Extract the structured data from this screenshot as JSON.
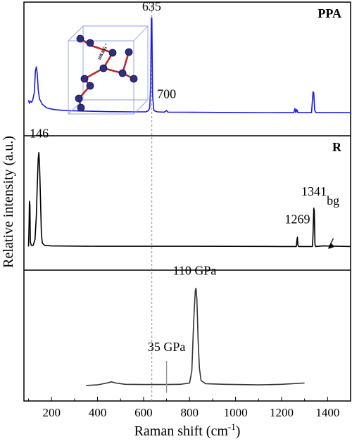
{
  "chart_data": {
    "type": "line",
    "x_axis": {
      "label": "Raman shift (cm",
      "label_sup": "-1",
      "label_close": ")",
      "range": [
        80,
        1500
      ],
      "ticks": [
        200,
        400,
        600,
        800,
        1000,
        1200,
        1400
      ],
      "tick_labels": [
        "200",
        "400",
        "600",
        "800",
        "1000",
        "1200",
        "1400"
      ]
    },
    "y_axis": {
      "label": "Relative intensity (a.u.)"
    },
    "reference_line_x": 636,
    "panels": [
      {
        "label": "PPA",
        "label_color": "#1010e0",
        "series_color": "#1a1aee",
        "x_range": [
          100,
          1500
        ],
        "baseline": 0.08,
        "points": [
          [
            100,
            0.2
          ],
          [
            104,
            0.17
          ],
          [
            108,
            0.19
          ],
          [
            113,
            0.18
          ],
          [
            118,
            0.2
          ],
          [
            125,
            0.27
          ],
          [
            130,
            0.48
          ],
          [
            134,
            0.52
          ],
          [
            138,
            0.45
          ],
          [
            142,
            0.3
          ],
          [
            148,
            0.21
          ],
          [
            160,
            0.16
          ],
          [
            180,
            0.125
          ],
          [
            210,
            0.11
          ],
          [
            260,
            0.1
          ],
          [
            350,
            0.095
          ],
          [
            450,
            0.09
          ],
          [
            550,
            0.088
          ],
          [
            610,
            0.088
          ],
          [
            622,
            0.1
          ],
          [
            627,
            0.13
          ],
          [
            631,
            0.35
          ],
          [
            634,
            0.99
          ],
          [
            636,
            0.99
          ],
          [
            639,
            0.25
          ],
          [
            645,
            0.1
          ],
          [
            660,
            0.088
          ],
          [
            690,
            0.085
          ],
          [
            700,
            0.1
          ],
          [
            706,
            0.085
          ],
          [
            800,
            0.084
          ],
          [
            1000,
            0.082
          ],
          [
            1200,
            0.08
          ],
          [
            1253,
            0.08
          ],
          [
            1258,
            0.12
          ],
          [
            1262,
            0.08
          ],
          [
            1266,
            0.11
          ],
          [
            1271,
            0.08
          ],
          [
            1330,
            0.08
          ],
          [
            1334,
            0.2
          ],
          [
            1337,
            0.28
          ],
          [
            1340,
            0.27
          ],
          [
            1344,
            0.1
          ],
          [
            1350,
            0.08
          ],
          [
            1500,
            0.08
          ]
        ],
        "peak_labels": [
          {
            "text": "635",
            "x": 635,
            "y": 1.06
          },
          {
            "text": "700",
            "x": 700,
            "y": 0.22
          }
        ]
      },
      {
        "label": "R",
        "label_color": "#000000",
        "series_color": "#000000",
        "x_range": [
          100,
          1500
        ],
        "baseline": 0.04,
        "points": [
          [
            100,
            0.04
          ],
          [
            102,
            0.2
          ],
          [
            104,
            0.43
          ],
          [
            106,
            0.4
          ],
          [
            108,
            0.08
          ],
          [
            112,
            0.05
          ],
          [
            120,
            0.05
          ],
          [
            128,
            0.1
          ],
          [
            134,
            0.3
          ],
          [
            138,
            0.58
          ],
          [
            142,
            0.8
          ],
          [
            145,
            0.85
          ],
          [
            148,
            0.74
          ],
          [
            152,
            0.45
          ],
          [
            156,
            0.15
          ],
          [
            160,
            0.07
          ],
          [
            170,
            0.05
          ],
          [
            200,
            0.045
          ],
          [
            400,
            0.042
          ],
          [
            800,
            0.042
          ],
          [
            1200,
            0.04
          ],
          [
            1264,
            0.04
          ],
          [
            1267,
            0.1
          ],
          [
            1269,
            0.12
          ],
          [
            1271,
            0.05
          ],
          [
            1274,
            0.04
          ],
          [
            1334,
            0.04
          ],
          [
            1337,
            0.15
          ],
          [
            1340,
            0.37
          ],
          [
            1342,
            0.35
          ],
          [
            1345,
            0.06
          ],
          [
            1348,
            0.04
          ],
          [
            1380,
            0.045
          ],
          [
            1500,
            0.04
          ]
        ],
        "peak_labels": [
          {
            "text": "146",
            "x": 146,
            "y": 0.98
          },
          {
            "text": "1269",
            "x": 1269,
            "y": 0.24
          },
          {
            "text": "1341",
            "x": 1341,
            "y": 0.48
          },
          {
            "text": "bg",
            "x": 1424,
            "y": 0.4
          }
        ]
      },
      {
        "label": "",
        "series_color": "#333333",
        "x_range": [
          350,
          1300
        ],
        "baseline": 0.08,
        "points": [
          [
            350,
            0.08
          ],
          [
            400,
            0.085
          ],
          [
            440,
            0.1
          ],
          [
            460,
            0.11
          ],
          [
            480,
            0.1
          ],
          [
            520,
            0.09
          ],
          [
            600,
            0.088
          ],
          [
            700,
            0.088
          ],
          [
            760,
            0.09
          ],
          [
            800,
            0.1
          ],
          [
            810,
            0.2
          ],
          [
            818,
            0.6
          ],
          [
            825,
            0.85
          ],
          [
            828,
            0.87
          ],
          [
            832,
            0.78
          ],
          [
            837,
            0.45
          ],
          [
            843,
            0.22
          ],
          [
            850,
            0.12
          ],
          [
            870,
            0.095
          ],
          [
            950,
            0.09
          ],
          [
            1100,
            0.085
          ],
          [
            1200,
            0.09
          ],
          [
            1300,
            0.1
          ]
        ],
        "peak_labels": [
          {
            "text": "110 GPa",
            "x": 822,
            "y": 0.98
          },
          {
            "text": "35 GPa",
            "x": 700,
            "y": 0.36
          }
        ],
        "marker_x": 700,
        "marker_height": 0.28
      }
    ]
  }
}
